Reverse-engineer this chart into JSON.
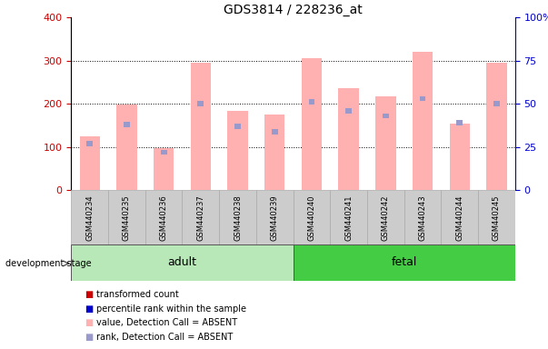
{
  "title": "GDS3814 / 228236_at",
  "samples": [
    "GSM440234",
    "GSM440235",
    "GSM440236",
    "GSM440237",
    "GSM440238",
    "GSM440239",
    "GSM440240",
    "GSM440241",
    "GSM440242",
    "GSM440243",
    "GSM440244",
    "GSM440245"
  ],
  "pink_values": [
    125,
    198,
    98,
    295,
    183,
    175,
    305,
    237,
    217,
    320,
    155,
    295
  ],
  "blue_ranks_pct": [
    27,
    38,
    22,
    50,
    37,
    34,
    51,
    46,
    43,
    53,
    39,
    50
  ],
  "left_ylim": [
    0,
    400
  ],
  "right_ylim": [
    0,
    100
  ],
  "left_yticks": [
    0,
    100,
    200,
    300,
    400
  ],
  "right_yticks": [
    0,
    25,
    50,
    75,
    100
  ],
  "right_yticklabels": [
    "0",
    "25",
    "50",
    "75",
    "100%"
  ],
  "left_color": "#cc0000",
  "right_color": "#0000cc",
  "bar_pink": "#ffb0b0",
  "bar_blue": "#9999cc",
  "adult_color_light": "#b8e8b8",
  "adult_color": "#88dd88",
  "fetal_color": "#44cc44",
  "fetal_color_dark": "#33aa33",
  "sample_box_color": "#cccccc",
  "sample_box_edge": "#aaaaaa",
  "grid_color": "#000000"
}
